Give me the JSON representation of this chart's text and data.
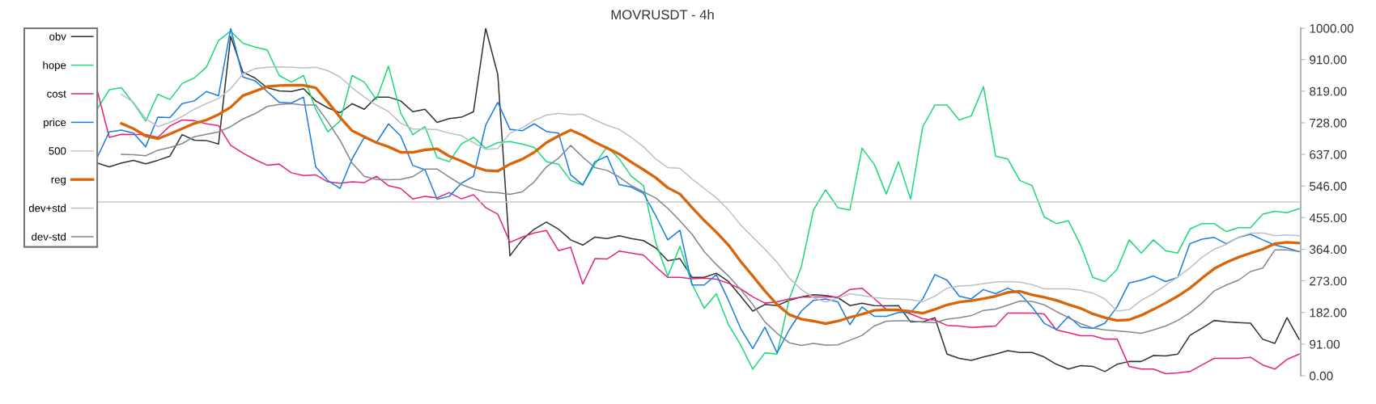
{
  "chart_data": {
    "type": "line",
    "title": "MOVRUSDT - 4h",
    "categories": [
      null,
      null,
      null,
      null,
      null,
      null,
      null,
      null,
      null,
      null,
      null,
      null,
      null,
      null,
      null,
      null,
      null,
      null,
      null,
      null,
      null,
      null,
      null,
      null,
      null,
      null,
      null,
      null,
      null,
      null,
      null,
      null,
      null,
      null,
      null,
      null,
      null,
      null,
      null,
      null,
      null,
      null,
      null,
      null,
      null,
      null,
      null,
      null,
      null,
      null,
      null,
      null,
      null,
      null,
      null,
      null,
      null,
      null,
      null,
      null,
      null,
      null,
      null,
      null,
      null,
      null,
      null,
      null,
      null,
      null,
      null,
      null,
      null,
      null,
      null,
      null,
      null,
      null,
      null,
      null,
      null,
      null,
      null,
      null,
      null,
      null,
      null,
      null,
      null,
      null,
      null,
      null,
      null,
      null,
      null,
      null,
      null,
      null,
      null,
      null,
      null,
      null,
      null,
      null,
      null,
      null
    ],
    "ylim": [
      0,
      1000
    ],
    "yticks": [
      {
        "value": 0,
        "label": "0.00"
      },
      {
        "value": 91,
        "label": "91.00"
      },
      {
        "value": 182,
        "label": "182.00"
      },
      {
        "value": 273,
        "label": "273.00"
      },
      {
        "value": 364,
        "label": "364.00"
      },
      {
        "value": 455,
        "label": "455.00"
      },
      {
        "value": 546,
        "label": "546.00"
      },
      {
        "value": 637,
        "label": "637.00"
      },
      {
        "value": 728,
        "label": "728.00"
      },
      {
        "value": 819,
        "label": "819.00"
      },
      {
        "value": 910,
        "label": "910.00"
      },
      {
        "value": 1000,
        "label": "1000.00"
      }
    ],
    "tick_labels": "y",
    "grid": false,
    "legend": "top left",
    "marker": "none",
    "line_style": "solid",
    "series": [
      {
        "name": "obv",
        "color": "#333333",
        "values": [
          null,
          null,
          null,
          null,
          null,
          null,
          612,
          601,
          612,
          620,
          610,
          620,
          632,
          694,
          678,
          677,
          667,
          977,
          874,
          857,
          829,
          820,
          818,
          826,
          791,
          771,
          757,
          783,
          767,
          802,
          802,
          791,
          760,
          767,
          729,
          740,
          744,
          760,
          1000,
          867,
          345,
          391,
          422,
          442,
          422,
          391,
          376,
          399,
          395,
          403,
          395,
          389,
          368,
          331,
          337,
          283,
          283,
          295,
          271,
          229,
          186,
          205,
          202,
          217,
          227,
          233,
          231,
          225,
          202,
          209,
          202,
          201,
          202,
          155,
          155,
          167,
          62,
          50,
          44,
          54,
          62,
          72,
          67,
          67,
          54,
          33,
          19,
          29,
          27,
          12,
          33,
          41,
          41,
          58,
          57,
          62,
          116,
          137,
          159,
          155,
          153,
          151,
          105,
          93,
          167,
          105
        ]
      },
      {
        "name": "hope",
        "color": "#1ed97a",
        "values": [
          null,
          null,
          null,
          null,
          null,
          null,
          767,
          823,
          829,
          784,
          733,
          810,
          795,
          841,
          857,
          888,
          965,
          992,
          957,
          946,
          938,
          864,
          845,
          864,
          767,
          702,
          733,
          864,
          845,
          795,
          891,
          756,
          694,
          717,
          628,
          616,
          667,
          686,
          655,
          671,
          674,
          667,
          657,
          616,
          609,
          562,
          549,
          609,
          659,
          624,
          574,
          547,
          384,
          287,
          372,
          264,
          194,
          236,
          147,
          89,
          19,
          66,
          62,
          221,
          314,
          477,
          535,
          484,
          477,
          655,
          609,
          523,
          616,
          508,
          717,
          779,
          779,
          736,
          748,
          832,
          632,
          624,
          562,
          547,
          457,
          438,
          446,
          376,
          283,
          271,
          306,
          391,
          353,
          391,
          360,
          353,
          422,
          438,
          438,
          415,
          426,
          426,
          465,
          473,
          469,
          481
        ]
      },
      {
        "name": "cost",
        "color": "#e6247f",
        "values": [
          null,
          null,
          null,
          null,
          null,
          null,
          822,
          686,
          695,
          694,
          694,
          686,
          719,
          736,
          734,
          725,
          720,
          663,
          641,
          622,
          606,
          609,
          584,
          576,
          578,
          558,
          554,
          558,
          556,
          574,
          547,
          539,
          509,
          516,
          512,
          527,
          509,
          521,
          484,
          465,
          384,
          399,
          411,
          418,
          360,
          370,
          264,
          337,
          336,
          359,
          353,
          347,
          314,
          283,
          283,
          279,
          281,
          278,
          266,
          250,
          227,
          209,
          213,
          221,
          226,
          227,
          227,
          226,
          248,
          252,
          222,
          191,
          190,
          178,
          164,
          160,
          145,
          143,
          139,
          141,
          143,
          180,
          180,
          180,
          178,
          132,
          124,
          115,
          115,
          105,
          106,
          27,
          19,
          19,
          6,
          8,
          12,
          31,
          50,
          50,
          50,
          53,
          31,
          19,
          47,
          62
        ]
      },
      {
        "name": "price",
        "color": "#1a7fe0",
        "values": [
          null,
          null,
          null,
          null,
          null,
          null,
          628,
          702,
          707,
          698,
          659,
          744,
          743,
          783,
          791,
          818,
          806,
          1000,
          860,
          849,
          818,
          787,
          785,
          802,
          601,
          562,
          539,
          624,
          686,
          671,
          725,
          690,
          605,
          593,
          508,
          516,
          554,
          574,
          721,
          787,
          709,
          705,
          725,
          703,
          698,
          578,
          549,
          616,
          632,
          550,
          543,
          525,
          461,
          391,
          419,
          261,
          261,
          291,
          217,
          136,
          78,
          140,
          66,
          132,
          186,
          217,
          221,
          213,
          147,
          198,
          171,
          171,
          182,
          182,
          221,
          291,
          275,
          229,
          221,
          248,
          236,
          252,
          236,
          198,
          151,
          133,
          171,
          140,
          136,
          151,
          198,
          267,
          275,
          287,
          271,
          283,
          380,
          393,
          398,
          380,
          398,
          407,
          391,
          376,
          368,
          357
        ]
      },
      {
        "name": "500",
        "color": "#c8c8c8",
        "values": [
          null,
          null,
          null,
          null,
          null,
          null,
          500,
          500,
          500,
          500,
          500,
          500,
          500,
          500,
          500,
          500,
          500,
          500,
          500,
          500,
          500,
          500,
          500,
          500,
          500,
          500,
          500,
          500,
          500,
          500,
          500,
          500,
          500,
          500,
          500,
          500,
          500,
          500,
          500,
          500,
          500,
          500,
          500,
          500,
          500,
          500,
          500,
          500,
          500,
          500,
          500,
          500,
          500,
          500,
          500,
          500,
          500,
          500,
          500,
          500,
          500,
          500,
          500,
          500,
          500,
          500,
          500,
          500,
          500,
          500,
          500,
          500,
          500,
          500,
          500,
          500,
          500,
          500,
          500,
          500,
          500,
          500,
          500,
          500,
          500,
          500,
          500,
          500,
          500,
          500,
          500,
          500,
          500,
          500,
          500,
          500,
          500,
          500,
          500,
          500,
          500,
          500,
          500,
          500,
          500,
          500
        ]
      },
      {
        "name": "reg",
        "color": "#d9650a",
        "values": [
          null,
          null,
          null,
          null,
          null,
          null,
          null,
          null,
          726,
          711,
          690,
          682,
          696,
          711,
          726,
          736,
          752,
          773,
          806,
          819,
          832,
          835,
          836,
          836,
          829,
          788,
          744,
          705,
          688,
          671,
          659,
          643,
          643,
          650,
          653,
          632,
          618,
          602,
          591,
          589,
          609,
          623,
          643,
          671,
          690,
          707,
          692,
          672,
          655,
          638,
          615,
          593,
          570,
          541,
          523,
          484,
          447,
          413,
          376,
          329,
          287,
          244,
          205,
          176,
          163,
          157,
          150,
          157,
          168,
          177,
          188,
          190,
          189,
          185,
          180,
          191,
          204,
          212,
          216,
          222,
          229,
          240,
          243,
          233,
          226,
          217,
          205,
          194,
          178,
          167,
          159,
          161,
          174,
          191,
          209,
          229,
          252,
          281,
          308,
          326,
          341,
          353,
          364,
          380,
          384,
          382
        ]
      },
      {
        "name": "dev+std",
        "color": "#bcc0c4",
        "values": [
          null,
          null,
          null,
          null,
          null,
          null,
          null,
          null,
          810,
          787,
          740,
          717,
          729,
          746,
          767,
          783,
          798,
          826,
          868,
          884,
          888,
          889,
          888,
          886,
          888,
          878,
          860,
          829,
          802,
          779,
          760,
          727,
          710,
          710,
          708,
          698,
          691,
          671,
          652,
          654,
          698,
          713,
          735,
          750,
          755,
          751,
          753,
          736,
          721,
          709,
          686,
          659,
          624,
          599,
          597,
          566,
          539,
          512,
          477,
          434,
          399,
          364,
          326,
          281,
          248,
          225,
          212,
          223,
          236,
          231,
          225,
          222,
          221,
          219,
          213,
          229,
          252,
          258,
          260,
          265,
          270,
          271,
          269,
          262,
          250,
          250,
          250,
          246,
          238,
          221,
          186,
          190,
          217,
          236,
          260,
          284,
          310,
          341,
          364,
          378,
          399,
          410,
          411,
          403,
          405,
          403
        ]
      },
      {
        "name": "dev-std",
        "color": "#7f8a94",
        "values": [
          null,
          null,
          null,
          null,
          null,
          null,
          null,
          null,
          637,
          636,
          633,
          649,
          657,
          668,
          688,
          695,
          702,
          717,
          739,
          754,
          775,
          781,
          783,
          779,
          779,
          731,
          678,
          612,
          574,
          565,
          564,
          565,
          573,
          595,
          595,
          572,
          550,
          538,
          529,
          527,
          522,
          529,
          558,
          601,
          626,
          663,
          629,
          599,
          591,
          572,
          547,
          529,
          512,
          482,
          446,
          407,
          357,
          320,
          287,
          248,
          205,
          155,
          122,
          95,
          87,
          93,
          88,
          89,
          102,
          116,
          143,
          157,
          158,
          158,
          154,
          153,
          163,
          167,
          173,
          188,
          192,
          203,
          215,
          214,
          204,
          185,
          167,
          150,
          137,
          132,
          129,
          126,
          122,
          132,
          143,
          159,
          181,
          209,
          244,
          261,
          275,
          300,
          310,
          362,
          362,
          358
        ]
      }
    ]
  }
}
